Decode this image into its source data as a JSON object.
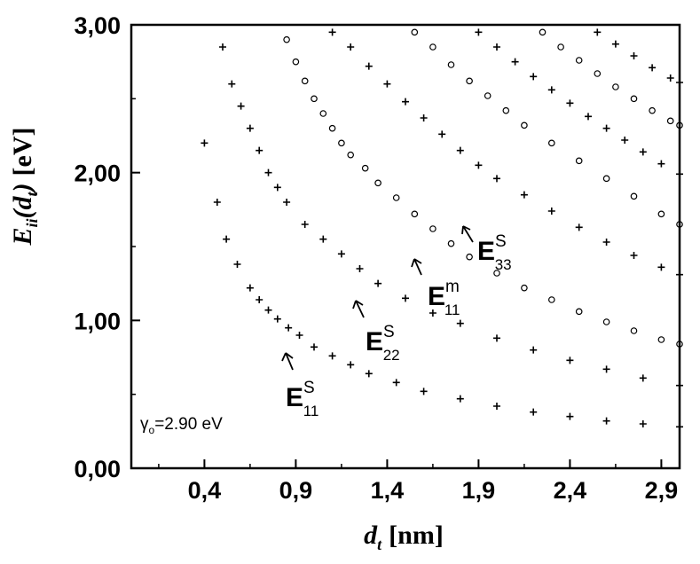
{
  "chart_data": {
    "type": "scatter",
    "xlabel": {
      "main": "d",
      "sub": "t",
      "unit": "[nm]"
    },
    "ylabel": {
      "main": "E",
      "sub": "ii",
      "arg_open": "(d",
      "arg_sub": "t",
      "arg_close": ")",
      "unit": "[eV]"
    },
    "xlim": [
      0,
      3.0
    ],
    "ylim": [
      0,
      3.0
    ],
    "x_ticks": [
      {
        "value": 0.4,
        "label": "0,4"
      },
      {
        "value": 0.9,
        "label": "0,9"
      },
      {
        "value": 1.4,
        "label": "1,4"
      },
      {
        "value": 1.9,
        "label": "1,9"
      },
      {
        "value": 2.4,
        "label": "2,4"
      },
      {
        "value": 2.9,
        "label": "2,9"
      }
    ],
    "y_ticks": [
      {
        "value": 0,
        "label": "0,00"
      },
      {
        "value": 1,
        "label": "1,00"
      },
      {
        "value": 2,
        "label": "2,00"
      },
      {
        "value": 3,
        "label": "3,00"
      }
    ],
    "parameter": {
      "symbol": "γ",
      "sub": "o",
      "text": "=2.90 eV"
    },
    "series": [
      {
        "marker": "plus",
        "values": [
          [
            0.47,
            1.8
          ],
          [
            0.52,
            1.55
          ],
          [
            0.58,
            1.38
          ],
          [
            0.65,
            1.22
          ],
          [
            0.7,
            1.14
          ],
          [
            0.75,
            1.07
          ],
          [
            0.8,
            1.01
          ],
          [
            0.86,
            0.95
          ],
          [
            0.92,
            0.9
          ],
          [
            1.0,
            0.82
          ],
          [
            1.1,
            0.76
          ],
          [
            1.2,
            0.7
          ],
          [
            1.3,
            0.64
          ],
          [
            1.45,
            0.58
          ],
          [
            1.6,
            0.52
          ],
          [
            1.8,
            0.47
          ],
          [
            2.0,
            0.42
          ],
          [
            2.2,
            0.38
          ],
          [
            2.4,
            0.35
          ],
          [
            2.6,
            0.32
          ],
          [
            2.8,
            0.3
          ],
          [
            3.0,
            0.28
          ]
        ]
      },
      {
        "marker": "plus",
        "values": [
          [
            0.4,
            2.2
          ],
          [
            0.5,
            2.85
          ],
          [
            0.55,
            2.6
          ],
          [
            0.6,
            2.45
          ],
          [
            0.65,
            2.3
          ],
          [
            0.7,
            2.15
          ],
          [
            0.75,
            2.0
          ],
          [
            0.8,
            1.9
          ],
          [
            0.85,
            1.8
          ],
          [
            0.95,
            1.65
          ],
          [
            1.05,
            1.55
          ],
          [
            1.15,
            1.45
          ],
          [
            1.25,
            1.35
          ],
          [
            1.35,
            1.25
          ],
          [
            1.5,
            1.15
          ],
          [
            1.65,
            1.05
          ],
          [
            1.8,
            0.98
          ],
          [
            2.0,
            0.88
          ],
          [
            2.2,
            0.8
          ],
          [
            2.4,
            0.73
          ],
          [
            2.6,
            0.67
          ],
          [
            2.8,
            0.61
          ],
          [
            3.0,
            0.56
          ]
        ]
      },
      {
        "marker": "circle",
        "values": [
          [
            0.85,
            2.9
          ],
          [
            0.9,
            2.75
          ],
          [
            0.95,
            2.62
          ],
          [
            1.0,
            2.5
          ],
          [
            1.05,
            2.4
          ],
          [
            1.1,
            2.3
          ],
          [
            1.15,
            2.2
          ],
          [
            1.2,
            2.12
          ],
          [
            1.28,
            2.03
          ],
          [
            1.35,
            1.93
          ],
          [
            1.45,
            1.83
          ],
          [
            1.55,
            1.72
          ],
          [
            1.65,
            1.62
          ],
          [
            1.75,
            1.52
          ],
          [
            1.85,
            1.43
          ],
          [
            2.0,
            1.32
          ],
          [
            2.15,
            1.22
          ],
          [
            2.3,
            1.14
          ],
          [
            2.45,
            1.06
          ],
          [
            2.6,
            0.99
          ],
          [
            2.75,
            0.93
          ],
          [
            2.9,
            0.87
          ],
          [
            3.0,
            0.84
          ]
        ]
      },
      {
        "marker": "plus",
        "values": [
          [
            1.1,
            2.95
          ],
          [
            1.2,
            2.85
          ],
          [
            1.3,
            2.72
          ],
          [
            1.4,
            2.6
          ],
          [
            1.5,
            2.48
          ],
          [
            1.6,
            2.37
          ],
          [
            1.7,
            2.26
          ],
          [
            1.8,
            2.15
          ],
          [
            1.9,
            2.05
          ],
          [
            2.0,
            1.96
          ],
          [
            2.15,
            1.85
          ],
          [
            2.3,
            1.74
          ],
          [
            2.45,
            1.63
          ],
          [
            2.6,
            1.53
          ],
          [
            2.75,
            1.44
          ],
          [
            2.9,
            1.36
          ],
          [
            3.0,
            1.31
          ]
        ]
      },
      {
        "marker": "circle",
        "values": [
          [
            1.55,
            2.95
          ],
          [
            1.65,
            2.85
          ],
          [
            1.75,
            2.73
          ],
          [
            1.85,
            2.62
          ],
          [
            1.95,
            2.52
          ],
          [
            2.05,
            2.42
          ],
          [
            2.15,
            2.32
          ],
          [
            2.3,
            2.2
          ],
          [
            2.45,
            2.08
          ],
          [
            2.6,
            1.96
          ],
          [
            2.75,
            1.84
          ],
          [
            2.9,
            1.72
          ],
          [
            3.0,
            1.65
          ]
        ]
      },
      {
        "marker": "plus",
        "values": [
          [
            1.9,
            2.95
          ],
          [
            2.0,
            2.85
          ],
          [
            2.1,
            2.75
          ],
          [
            2.2,
            2.65
          ],
          [
            2.3,
            2.56
          ],
          [
            2.4,
            2.47
          ],
          [
            2.5,
            2.38
          ],
          [
            2.6,
            2.3
          ],
          [
            2.7,
            2.22
          ],
          [
            2.8,
            2.14
          ],
          [
            2.9,
            2.06
          ],
          [
            3.0,
            1.99
          ]
        ]
      },
      {
        "marker": "circle",
        "values": [
          [
            2.25,
            2.95
          ],
          [
            2.35,
            2.85
          ],
          [
            2.45,
            2.76
          ],
          [
            2.55,
            2.67
          ],
          [
            2.65,
            2.58
          ],
          [
            2.75,
            2.5
          ],
          [
            2.85,
            2.42
          ],
          [
            2.95,
            2.35
          ],
          [
            3.0,
            2.32
          ]
        ]
      },
      {
        "marker": "plus",
        "values": [
          [
            2.55,
            2.95
          ],
          [
            2.65,
            2.87
          ],
          [
            2.75,
            2.79
          ],
          [
            2.85,
            2.71
          ],
          [
            2.95,
            2.64
          ],
          [
            3.0,
            2.61
          ]
        ]
      }
    ],
    "annotations": [
      {
        "main": "E",
        "sup": "S",
        "sub": "11"
      },
      {
        "main": "E",
        "sup": "S",
        "sub": "22"
      },
      {
        "main": "E",
        "sup": "m",
        "sub": "11"
      },
      {
        "main": "E",
        "sup": "S",
        "sub": "33"
      }
    ]
  }
}
